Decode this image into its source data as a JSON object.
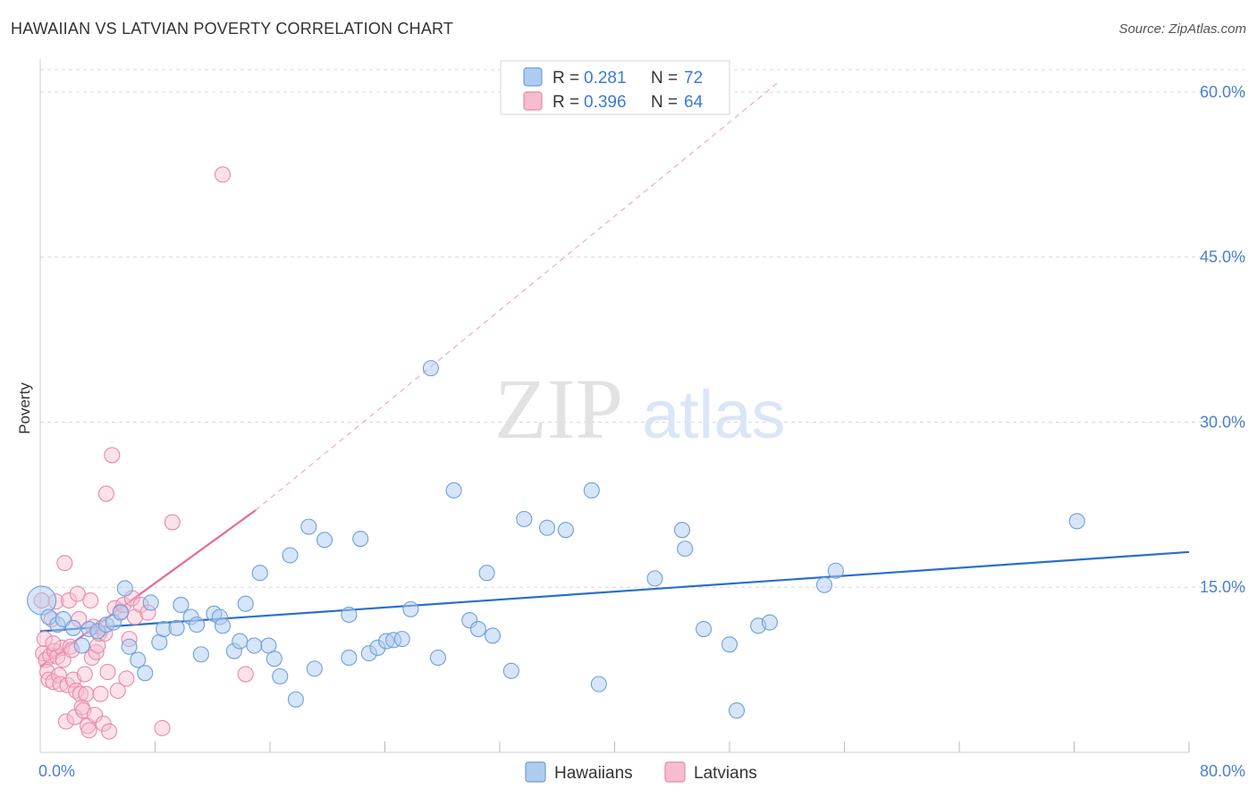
{
  "title": "HAWAIIAN VS LATVIAN POVERTY CORRELATION CHART",
  "source": "Source: ZipAtlas.com",
  "watermark": {
    "zip": "ZIP",
    "atlas": "atlas"
  },
  "colors": {
    "hawaiian_fill": "#aecbf0",
    "hawaiian_stroke": "#6f9fdc",
    "hawaiian_line": "#2a6fcf",
    "latvian_fill": "#f7bcd0",
    "latvian_stroke": "#e88aa8",
    "latvian_line": "#e8689a",
    "grid": "#d8d8d8",
    "tick_text": "#4a7fd0"
  },
  "legend": {
    "rows": [
      {
        "r_label": "R =",
        "r_value": "0.281",
        "n_label": "N =",
        "n_value": "72"
      },
      {
        "r_label": "R =",
        "r_value": "0.396",
        "n_label": "N =",
        "n_value": "64"
      }
    ]
  },
  "chart_data": {
    "type": "scatter",
    "title": "HAWAIIAN VS LATVIAN POVERTY CORRELATION CHART",
    "xlabel": "",
    "ylabel": "Poverty",
    "xlim": [
      0,
      80
    ],
    "ylim": [
      0,
      63
    ],
    "x_tick_labels": [
      {
        "value": 0,
        "label": "0.0%"
      },
      {
        "value": 80,
        "label": "80.0%"
      }
    ],
    "y_tick_labels": [
      {
        "value": 15,
        "label": "15.0%"
      },
      {
        "value": 30,
        "label": "30.0%"
      },
      {
        "value": 45,
        "label": "45.0%"
      },
      {
        "value": 60,
        "label": "60.0%"
      }
    ],
    "x_minor_ticks": [
      8,
      16,
      24,
      32,
      40,
      48,
      56,
      64,
      72,
      80
    ],
    "legend_position": "top-center",
    "series": [
      {
        "name": "Hawaiians",
        "R": 0.281,
        "N": 72,
        "trend": {
          "x": [
            0,
            80
          ],
          "y": [
            11.0,
            18.2
          ]
        },
        "points": [
          [
            0.1,
            13.8
          ],
          [
            0.6,
            12.3
          ],
          [
            1.2,
            11.6
          ],
          [
            1.6,
            12.1
          ],
          [
            2.3,
            11.3
          ],
          [
            2.9,
            9.7
          ],
          [
            3.4,
            11.2
          ],
          [
            4.0,
            11.0
          ],
          [
            4.6,
            11.6
          ],
          [
            5.1,
            11.8
          ],
          [
            5.6,
            12.7
          ],
          [
            5.9,
            14.9
          ],
          [
            6.2,
            9.6
          ],
          [
            6.8,
            8.4
          ],
          [
            7.3,
            7.2
          ],
          [
            7.7,
            13.6
          ],
          [
            8.3,
            10.0
          ],
          [
            8.6,
            11.2
          ],
          [
            9.5,
            11.3
          ],
          [
            9.8,
            13.4
          ],
          [
            10.5,
            12.3
          ],
          [
            10.9,
            11.6
          ],
          [
            11.2,
            8.9
          ],
          [
            12.1,
            12.6
          ],
          [
            12.5,
            12.3
          ],
          [
            12.7,
            11.5
          ],
          [
            13.5,
            9.2
          ],
          [
            13.9,
            10.1
          ],
          [
            14.3,
            13.5
          ],
          [
            14.9,
            9.7
          ],
          [
            15.3,
            16.3
          ],
          [
            15.9,
            9.7
          ],
          [
            16.3,
            8.5
          ],
          [
            16.7,
            6.9
          ],
          [
            17.4,
            17.9
          ],
          [
            17.8,
            4.8
          ],
          [
            18.7,
            20.5
          ],
          [
            19.1,
            7.6
          ],
          [
            19.8,
            19.3
          ],
          [
            21.5,
            12.5
          ],
          [
            21.5,
            8.6
          ],
          [
            22.3,
            19.4
          ],
          [
            22.9,
            9.0
          ],
          [
            23.5,
            9.5
          ],
          [
            24.1,
            10.1
          ],
          [
            24.6,
            10.2
          ],
          [
            25.2,
            10.3
          ],
          [
            25.8,
            13.0
          ],
          [
            27.2,
            34.9
          ],
          [
            27.7,
            8.6
          ],
          [
            28.8,
            23.8
          ],
          [
            29.9,
            12.0
          ],
          [
            30.5,
            11.2
          ],
          [
            31.1,
            16.3
          ],
          [
            31.5,
            10.6
          ],
          [
            32.8,
            7.4
          ],
          [
            33.7,
            21.2
          ],
          [
            35.3,
            20.4
          ],
          [
            36.6,
            20.2
          ],
          [
            38.4,
            23.8
          ],
          [
            38.9,
            6.2
          ],
          [
            42.8,
            15.8
          ],
          [
            44.7,
            20.2
          ],
          [
            44.9,
            18.5
          ],
          [
            46.2,
            11.2
          ],
          [
            48.0,
            9.8
          ],
          [
            48.5,
            3.8
          ],
          [
            50.0,
            11.5
          ],
          [
            50.8,
            11.8
          ],
          [
            54.6,
            15.2
          ],
          [
            55.4,
            16.5
          ],
          [
            72.2,
            21.0
          ]
        ]
      },
      {
        "name": "Latvians",
        "R": 0.396,
        "N": 64,
        "trend": {
          "x": [
            0,
            15
          ],
          "y": [
            7.8,
            22.0
          ]
        },
        "trend_extended": {
          "x": [
            15,
            51.5
          ],
          "y": [
            22.0,
            61.0
          ]
        },
        "points": [
          [
            0.1,
            13.8
          ],
          [
            0.2,
            9.0
          ],
          [
            0.3,
            10.3
          ],
          [
            0.4,
            8.4
          ],
          [
            0.5,
            7.3
          ],
          [
            0.6,
            6.6
          ],
          [
            0.7,
            8.8
          ],
          [
            0.8,
            12.1
          ],
          [
            0.9,
            6.4
          ],
          [
            1.0,
            9.2
          ],
          [
            1.1,
            13.7
          ],
          [
            1.2,
            8.7
          ],
          [
            1.3,
            7.0
          ],
          [
            1.4,
            6.2
          ],
          [
            1.5,
            9.5
          ],
          [
            1.6,
            8.4
          ],
          [
            1.7,
            17.2
          ],
          [
            1.8,
            2.8
          ],
          [
            1.9,
            6.1
          ],
          [
            2.0,
            13.8
          ],
          [
            2.1,
            9.6
          ],
          [
            2.2,
            9.3
          ],
          [
            2.3,
            6.6
          ],
          [
            2.4,
            3.2
          ],
          [
            2.5,
            5.6
          ],
          [
            2.6,
            14.4
          ],
          [
            2.7,
            12.1
          ],
          [
            2.8,
            5.3
          ],
          [
            2.9,
            4.1
          ],
          [
            3.0,
            3.8
          ],
          [
            3.1,
            7.1
          ],
          [
            3.2,
            5.3
          ],
          [
            3.3,
            2.4
          ],
          [
            3.4,
            2.0
          ],
          [
            3.5,
            13.8
          ],
          [
            3.6,
            8.6
          ],
          [
            3.7,
            11.4
          ],
          [
            3.8,
            3.4
          ],
          [
            3.9,
            9.1
          ],
          [
            4.0,
            9.7
          ],
          [
            4.1,
            10.8
          ],
          [
            4.2,
            5.3
          ],
          [
            4.3,
            11.3
          ],
          [
            4.4,
            2.6
          ],
          [
            4.5,
            10.8
          ],
          [
            4.6,
            23.5
          ],
          [
            4.7,
            7.3
          ],
          [
            4.8,
            1.9
          ],
          [
            5.0,
            27.0
          ],
          [
            5.2,
            13.1
          ],
          [
            5.4,
            5.6
          ],
          [
            5.6,
            12.8
          ],
          [
            5.8,
            13.4
          ],
          [
            6.0,
            6.7
          ],
          [
            6.2,
            10.3
          ],
          [
            6.4,
            14.0
          ],
          [
            6.6,
            12.3
          ],
          [
            7.0,
            13.4
          ],
          [
            7.5,
            12.7
          ],
          [
            8.5,
            2.2
          ],
          [
            9.2,
            20.9
          ],
          [
            12.7,
            52.5
          ],
          [
            14.3,
            7.1
          ],
          [
            0.9,
            9.9
          ]
        ]
      }
    ]
  },
  "bottom_legend": [
    {
      "label": "Hawaiians"
    },
    {
      "label": "Latvians"
    }
  ]
}
